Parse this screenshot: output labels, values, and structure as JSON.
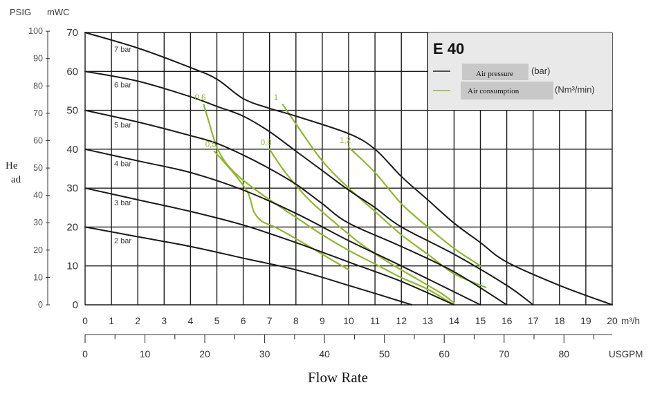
{
  "chart_data": {
    "type": "line",
    "title": "E 40",
    "x_unit": "m³/h",
    "x2_unit": "USGPM",
    "y_left_unit": "PSIG",
    "y_right_unit": "mWC",
    "y_side_label": "He ad",
    "xlabel": "Flow Rate",
    "xlim": [
      0,
      20
    ],
    "ylim": [
      0,
      70
    ],
    "grid": true,
    "x_ticks": [
      0,
      1,
      2,
      3,
      4,
      5,
      6,
      7,
      8,
      9,
      10,
      11,
      12,
      13,
      14,
      15,
      16,
      17,
      18,
      19,
      20
    ],
    "x2_ticks": [
      0,
      10,
      20,
      30,
      40,
      50,
      60,
      70,
      80
    ],
    "y_mwc_ticks": [
      0,
      10,
      20,
      30,
      40,
      50,
      60,
      70
    ],
    "y_psig_ticks": [
      0,
      10,
      20,
      30,
      40,
      50,
      60,
      70,
      80,
      90,
      100
    ],
    "legend": {
      "position": "top-right",
      "items": [
        {
          "label": "Air pressure",
          "unit": "(bar)",
          "color": "#1a1a1a"
        },
        {
          "label": "Air consumption",
          "unit": "(Nm³/min)",
          "color": "#8fb82a"
        }
      ]
    },
    "pressure_series": [
      {
        "label": "7 bar",
        "color": "#1a1a1a",
        "x": [
          0,
          2,
          4,
          5,
          6,
          7,
          8,
          10,
          11,
          12,
          13,
          14,
          15,
          16,
          18,
          20
        ],
        "y": [
          70,
          66,
          61,
          58,
          53,
          50.5,
          48.5,
          44,
          40,
          33,
          27,
          21,
          16,
          11,
          5,
          0
        ]
      },
      {
        "label": "6 bar",
        "color": "#1a1a1a",
        "x": [
          0,
          2,
          4,
          5,
          6,
          7,
          8,
          9,
          10,
          11,
          12,
          14,
          16,
          17
        ],
        "y": [
          60,
          57.5,
          53.5,
          51,
          48.5,
          44.5,
          39.5,
          34.5,
          29.5,
          25,
          20,
          13,
          5,
          0
        ]
      },
      {
        "label": "5 bar",
        "color": "#1a1a1a",
        "x": [
          0,
          2,
          4,
          5,
          6,
          7,
          8,
          9,
          10,
          12,
          14,
          16
        ],
        "y": [
          50,
          47,
          43.5,
          41.5,
          38.5,
          35,
          31,
          26,
          21,
          15,
          8.5,
          0
        ]
      },
      {
        "label": "4 bar",
        "color": "#1a1a1a",
        "x": [
          0,
          2,
          4,
          6,
          8,
          10,
          12,
          15
        ],
        "y": [
          40,
          37,
          34,
          29.5,
          23.5,
          16.5,
          10,
          0
        ]
      },
      {
        "label": "3 bar",
        "color": "#1a1a1a",
        "x": [
          0,
          2,
          4,
          6,
          8,
          10,
          12,
          14
        ],
        "y": [
          30,
          27,
          24,
          20.5,
          16,
          11,
          6,
          0
        ]
      },
      {
        "label": "2 bar",
        "color": "#1a1a1a",
        "x": [
          0,
          2,
          4,
          6,
          8,
          10,
          12.4
        ],
        "y": [
          20,
          17.5,
          15,
          12,
          9,
          5,
          0
        ]
      }
    ],
    "consumption_series": [
      {
        "label": "0,5",
        "color": "#8fb82a",
        "x": [
          4.9,
          5.3,
          5.8,
          6.2,
          6.4,
          6.7,
          7.2,
          8,
          9,
          10
        ],
        "y": [
          39.5,
          36.5,
          32.5,
          28.5,
          24,
          21.5,
          20,
          17,
          13,
          9
        ]
      },
      {
        "label": "0,6",
        "color": "#8fb82a",
        "x": [
          4.5,
          4.7,
          5.0,
          5.4,
          6.0,
          7.0,
          8.0,
          9.0,
          10.0,
          11.0,
          12.0,
          13.0,
          14.0
        ],
        "y": [
          51.5,
          47,
          40.5,
          36,
          32,
          27,
          22.5,
          18,
          14,
          10.5,
          7,
          4,
          0
        ]
      },
      {
        "label": "0,8",
        "color": "#8fb82a",
        "x": [
          7.0,
          7.6,
          8.5,
          9.5,
          10.5,
          11.5,
          12.5,
          13.5,
          14.0
        ],
        "y": [
          40,
          34,
          27,
          21,
          15.5,
          11,
          7,
          3,
          0.5
        ]
      },
      {
        "label": "1",
        "color": "#8fb82a",
        "x": [
          7.5,
          8.0,
          9.0,
          10.0,
          11.0,
          12.0,
          13.0,
          14.0,
          15.2
        ],
        "y": [
          51.5,
          46.5,
          37,
          30,
          24,
          18,
          13,
          8,
          4.5
        ]
      },
      {
        "label": "1,2",
        "color": "#8fb82a",
        "x": [
          10.0,
          11.0,
          12.0,
          13.0,
          14.0,
          15.0
        ],
        "y": [
          40.5,
          34,
          26,
          20,
          14.5,
          10
        ]
      }
    ]
  }
}
